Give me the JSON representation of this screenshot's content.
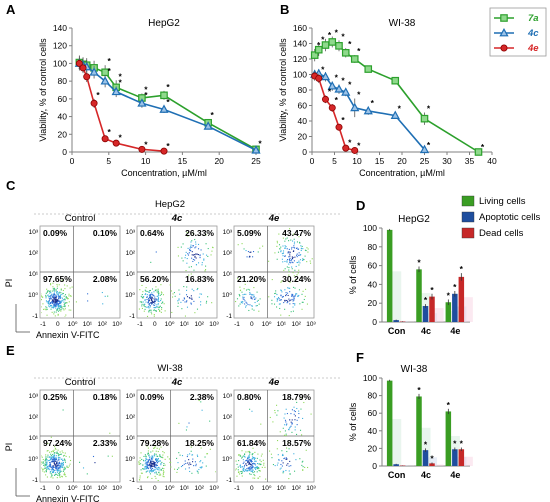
{
  "panels": {
    "A": "A",
    "B": "B",
    "C": "C",
    "D": "D",
    "E": "E",
    "F": "F"
  },
  "colors": {
    "7a": "#2ca02c",
    "4c": "#1f6fb4",
    "4e": "#d62728",
    "living": "#3a9d23",
    "apoptotic": "#1f4e9e",
    "dead": "#c62828"
  },
  "chart_data": [
    {
      "id": "A",
      "type": "line",
      "title": "HepG2",
      "xlabel": "Concentration, µM/ml",
      "ylabel": "Viability, % of control cells",
      "xlim": [
        0,
        25
      ],
      "ylim": [
        0,
        140
      ],
      "xticks": [
        0,
        5,
        10,
        15,
        20,
        25
      ],
      "yticks": [
        0,
        20,
        40,
        60,
        80,
        100,
        120,
        140
      ],
      "series": [
        {
          "name": "7a",
          "x": [
            1.0,
            1.5,
            2.0,
            3.0,
            4.5,
            6.0,
            9.5,
            12.5,
            18.5,
            25
          ],
          "y": [
            101,
            99,
            98,
            95,
            90,
            73,
            61,
            64,
            33,
            3
          ],
          "err": [
            8,
            8,
            8,
            8,
            8,
            8,
            5,
            5,
            4,
            2
          ],
          "sig": [
            false,
            false,
            false,
            false,
            true,
            true,
            true,
            true,
            true,
            true
          ]
        },
        {
          "name": "4c",
          "x": [
            1.0,
            1.5,
            2.0,
            3.0,
            4.5,
            6.0,
            9.5,
            12.5,
            18.5,
            25
          ],
          "y": [
            100,
            98,
            96,
            90,
            80,
            68,
            55,
            48,
            29,
            2
          ],
          "err": [
            8,
            8,
            8,
            7,
            7,
            6,
            5,
            4,
            3,
            1
          ],
          "sig": [
            false,
            false,
            false,
            false,
            true,
            true,
            true,
            true,
            false,
            false
          ]
        },
        {
          "name": "4e",
          "x": [
            1.0,
            1.5,
            2.0,
            3.0,
            4.5,
            6.0,
            9.5,
            12.5
          ],
          "y": [
            100,
            95,
            85,
            55,
            15,
            10,
            3,
            1
          ],
          "err": [
            6,
            6,
            6,
            5,
            3,
            2,
            1,
            1
          ],
          "sig": [
            false,
            false,
            false,
            true,
            true,
            true,
            true,
            true
          ]
        }
      ]
    },
    {
      "id": "B",
      "type": "line",
      "title": "WI-38",
      "xlabel": "Concentration, µM/ml",
      "ylabel": "Viability, % of control cells",
      "xlim": [
        0,
        40
      ],
      "ylim": [
        0,
        160
      ],
      "xticks": [
        0,
        5,
        10,
        15,
        20,
        25,
        30,
        35,
        40
      ],
      "yticks": [
        0,
        20,
        40,
        60,
        80,
        100,
        120,
        140,
        160
      ],
      "legend": [
        "7a",
        "4c",
        "4e"
      ],
      "series": [
        {
          "name": "7a",
          "x": [
            0.6,
            1.5,
            3.0,
            4.5,
            6.0,
            7.5,
            9.5,
            12.5,
            18.5,
            25,
            37
          ],
          "y": [
            125,
            132,
            138,
            142,
            137,
            128,
            120,
            107,
            92,
            43,
            0
          ],
          "err": [
            8,
            8,
            8,
            7,
            7,
            6,
            5,
            4,
            4,
            8,
            1
          ],
          "sig": [
            true,
            true,
            true,
            true,
            true,
            true,
            true,
            false,
            false,
            true,
            true
          ]
        },
        {
          "name": "4c",
          "x": [
            0.6,
            1.5,
            3.0,
            4.5,
            6.0,
            7.5,
            9.5,
            12.5,
            18.5,
            25
          ],
          "y": [
            100,
            101,
            97,
            85,
            81,
            77,
            57,
            53,
            47,
            3
          ],
          "err": [
            6,
            6,
            6,
            6,
            6,
            5,
            12,
            5,
            4,
            1
          ],
          "sig": [
            false,
            false,
            false,
            true,
            true,
            true,
            true,
            true,
            true,
            true
          ]
        },
        {
          "name": "4e",
          "x": [
            0.6,
            1.5,
            3.0,
            4.5,
            6.0,
            7.5,
            9.5
          ],
          "y": [
            98,
            95,
            68,
            57,
            32,
            5,
            2
          ],
          "err": [
            6,
            6,
            5,
            5,
            4,
            2,
            1
          ],
          "sig": [
            false,
            true,
            true,
            true,
            true,
            true,
            true
          ]
        }
      ]
    },
    {
      "id": "D",
      "type": "bar",
      "title": "HepG2",
      "ylabel": "% of cells",
      "ylim": [
        0,
        100
      ],
      "yticks": [
        0,
        20,
        40,
        60,
        80,
        100
      ],
      "categories": [
        "Con",
        "4c",
        "4e"
      ],
      "legend": [
        "Living cells",
        "Apoptotic  cells",
        "Dead cells"
      ],
      "series": [
        {
          "name": "Living cells",
          "values": [
            98,
            56,
            21
          ],
          "err": [
            1,
            3,
            3
          ],
          "sig": [
            false,
            true,
            true
          ]
        },
        {
          "name": "Apoptotic  cells",
          "values": [
            2,
            17,
            30
          ],
          "err": [
            0.5,
            2,
            3
          ],
          "sig": [
            false,
            true,
            true
          ]
        },
        {
          "name": "Dead cells",
          "values": [
            0.5,
            27,
            48
          ],
          "err": [
            0.3,
            3,
            4
          ],
          "sig": [
            false,
            true,
            true
          ]
        }
      ]
    },
    {
      "id": "F",
      "type": "bar",
      "title": "WI-38",
      "ylabel": "% of cells",
      "ylim": [
        0,
        100
      ],
      "yticks": [
        0,
        20,
        40,
        60,
        80,
        100
      ],
      "categories": [
        "Con",
        "4c",
        "4e"
      ],
      "series": [
        {
          "name": "Living cells",
          "values": [
            97,
            79,
            62
          ],
          "err": [
            1,
            3,
            3
          ],
          "sig": [
            false,
            true,
            true
          ]
        },
        {
          "name": "Apoptotic  cells",
          "values": [
            2,
            18,
            19
          ],
          "err": [
            0.5,
            2,
            2
          ],
          "sig": [
            false,
            true,
            true
          ]
        },
        {
          "name": "Dead cells",
          "values": [
            0.5,
            3,
            19
          ],
          "err": [
            0.2,
            1,
            2
          ],
          "sig": [
            false,
            true,
            true
          ]
        }
      ]
    }
  ],
  "flow_panels": [
    {
      "id": "C",
      "title": "HepG2",
      "ylabel": "PI",
      "xlabel": "Annexin V-FITC",
      "y_ticks": [
        "10³",
        "10²",
        "10¹",
        "10⁰",
        "-1"
      ],
      "x_ticks": [
        "-1",
        "0",
        "10⁰",
        "10¹",
        "10²",
        "10³"
      ],
      "plots": [
        {
          "label": "Control",
          "emph": false,
          "q": [
            "0.09%",
            "0.10%",
            "97.65%",
            "2.08%"
          ]
        },
        {
          "label": "4c",
          "emph": true,
          "q": [
            "0.64%",
            "26.33%",
            "56.20%",
            "16.83%"
          ]
        },
        {
          "label": "4e",
          "emph": true,
          "q": [
            "5.09%",
            "43.47%",
            "21.20%",
            "30.24%"
          ]
        }
      ]
    },
    {
      "id": "E",
      "title": "WI-38",
      "ylabel": "PI",
      "xlabel": "Annexin V-FITC",
      "y_ticks": [
        "10³",
        "10²",
        "10¹",
        "10⁰",
        "-1"
      ],
      "x_ticks": [
        "-1",
        "0",
        "10⁰",
        "10¹",
        "10²",
        "10³"
      ],
      "plots": [
        {
          "label": "Control",
          "emph": false,
          "q": [
            "0.25%",
            "0.18%",
            "97.24%",
            "2.33%"
          ]
        },
        {
          "label": "4c",
          "emph": true,
          "q": [
            "0.09%",
            "2.38%",
            "79.28%",
            "18.25%"
          ]
        },
        {
          "label": "4e",
          "emph": true,
          "q": [
            "0.80%",
            "18.79%",
            "61.84%",
            "18.57%"
          ]
        }
      ]
    }
  ]
}
